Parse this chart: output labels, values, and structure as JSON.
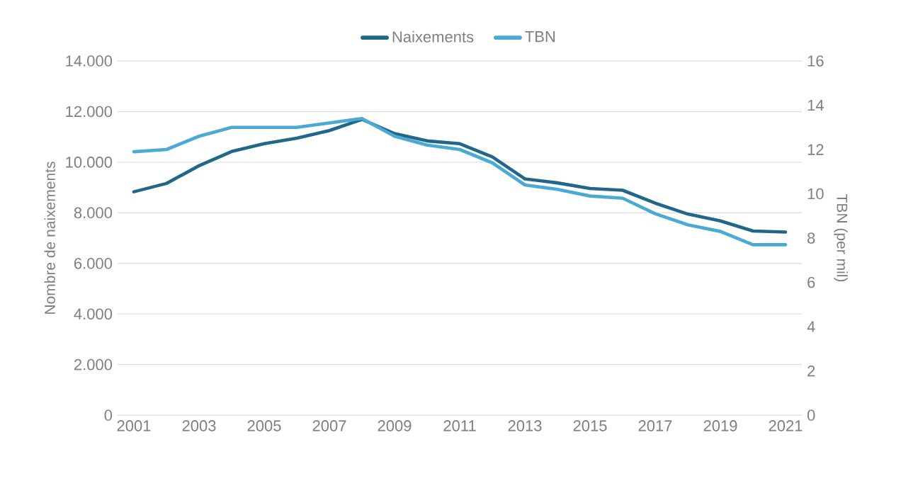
{
  "chart_data": {
    "type": "line",
    "xlabel": null,
    "ylabel": "Nombre de naixements",
    "y2label": "TBN (per mil)",
    "categories": [
      "2001",
      null,
      "2003",
      null,
      "2005",
      null,
      "2007",
      null,
      "2009",
      null,
      "2011",
      null,
      "2013",
      null,
      "2015",
      null,
      "2017",
      null,
      "2019",
      null,
      "2021"
    ],
    "series": [
      {
        "name": "Naixements",
        "color": "#21678a",
        "values": [
          8830,
          9160,
          9860,
          10420,
          10730,
          10950,
          11250,
          11690,
          11130,
          10840,
          10730,
          10210,
          9340,
          9180,
          8960,
          8890,
          8380,
          7950,
          7680,
          7280,
          7240
        ]
      },
      {
        "name": "TBN",
        "color": "#4aaad4",
        "axis": "y2",
        "values": [
          11.9,
          12.0,
          12.6,
          13.0,
          13.0,
          13.0,
          13.2,
          13.4,
          12.6,
          12.2,
          12.0,
          11.4,
          10.4,
          10.2,
          9.9,
          9.8,
          9.1,
          8.6,
          8.3,
          7.7,
          7.7
        ]
      }
    ],
    "ylim": [
      0,
      14000
    ],
    "yticks": [
      0,
      {
        "value": 2000,
        "label": "2.000"
      },
      {
        "value": 4000,
        "label": "4.000"
      },
      {
        "value": 6000,
        "label": "6.000"
      },
      {
        "value": 8000,
        "label": "8.000"
      },
      {
        "value": 10000,
        "label": "10.000"
      },
      {
        "value": 12000,
        "label": "12.000"
      },
      {
        "value": 14000,
        "label": "14.000"
      }
    ],
    "y2lim": [
      0,
      16
    ],
    "y2ticks": [
      0,
      2,
      4,
      6,
      8,
      10,
      12,
      14,
      16
    ],
    "grid": "y",
    "legend": "top"
  }
}
